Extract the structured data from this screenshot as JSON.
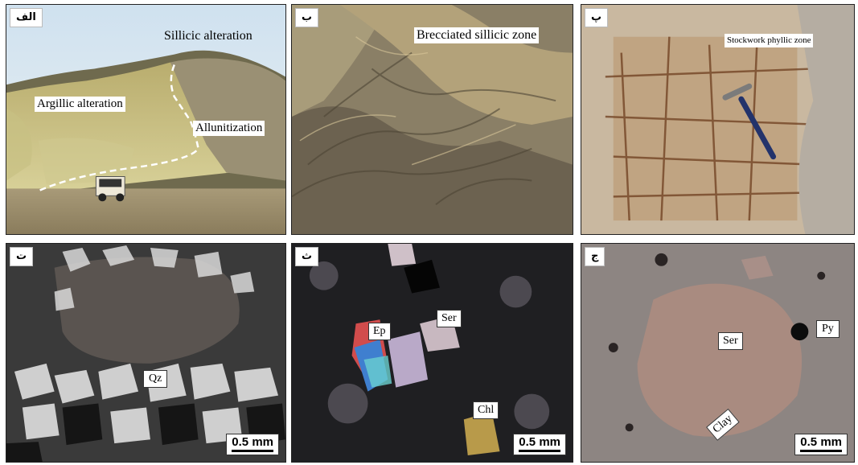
{
  "panels": [
    {
      "tag": "الف",
      "labels": {
        "sillicic": "Sillicic alteration",
        "argillic": "Argillic alteration",
        "allunitization": "Allunitization"
      }
    },
    {
      "tag": "ب",
      "labels": {
        "brecciated": "Brecciated sillicic zone"
      }
    },
    {
      "tag": "پ",
      "labels": {
        "stockwork": "Stockwork phyllic zone"
      }
    },
    {
      "tag": "ت",
      "labels": {
        "qz": "Qz"
      },
      "scale": "0.5 mm"
    },
    {
      "tag": "ث",
      "labels": {
        "ep": "Ep",
        "ser": "Ser",
        "chl": "Chl"
      },
      "scale": "0.5 mm"
    },
    {
      "tag": "ج",
      "labels": {
        "ser": "Ser",
        "py": "Py",
        "clay": "Clay"
      },
      "scale": "0.5 mm"
    }
  ]
}
